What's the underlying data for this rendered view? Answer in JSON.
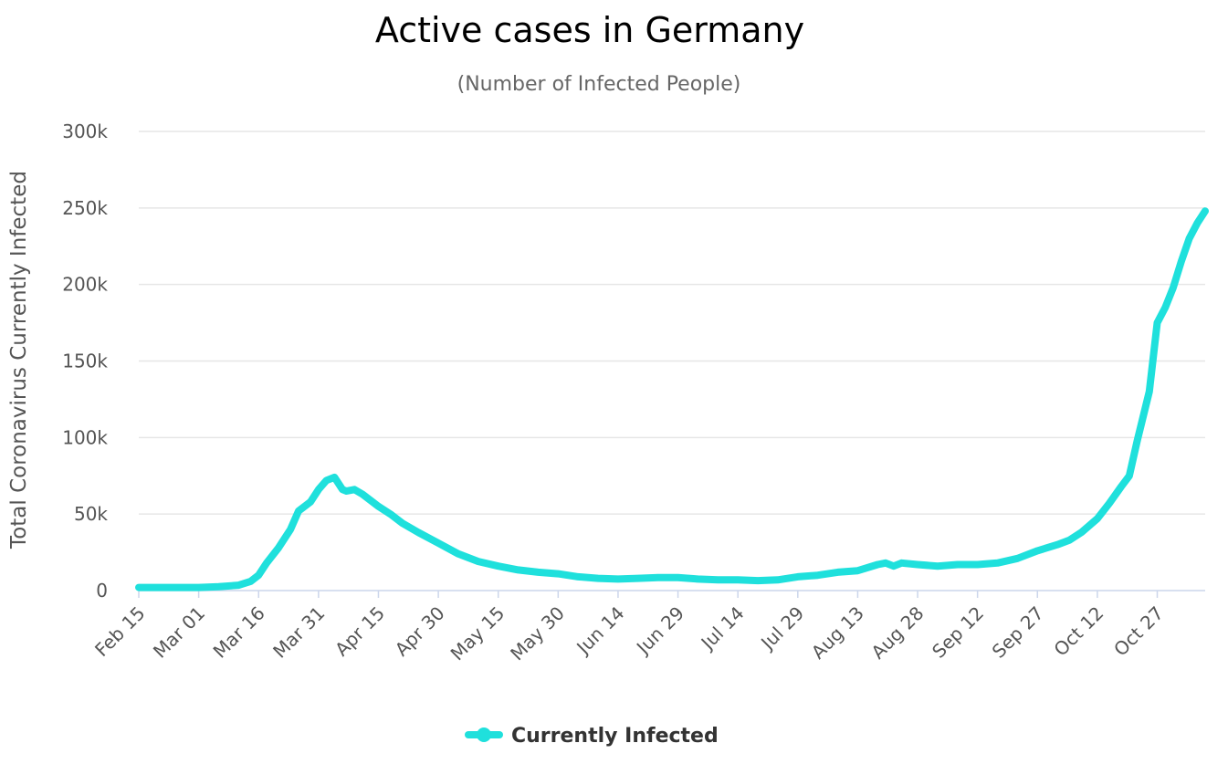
{
  "chart_data": {
    "type": "line",
    "title": "Active cases in Germany",
    "subtitle": "(Number of Infected People)",
    "ylabel": "Total Coronavirus Currently Infected",
    "xlabel": "",
    "ylim": [
      0,
      300000
    ],
    "y_ticks": [
      0,
      50000,
      100000,
      150000,
      200000,
      250000,
      300000
    ],
    "y_tick_labels": [
      "0",
      "50k",
      "100k",
      "150k",
      "200k",
      "250k",
      "300k"
    ],
    "x_tick_labels": [
      "Feb 15",
      "Mar 01",
      "Mar 16",
      "Mar 31",
      "Apr 15",
      "Apr 30",
      "May 15",
      "May 30",
      "Jun 14",
      "Jun 29",
      "Jul 14",
      "Jul 29",
      "Aug 13",
      "Aug 28",
      "Sep 12",
      "Sep 27",
      "Oct 12",
      "Oct 27"
    ],
    "grid": true,
    "legend_position": "bottom-center",
    "series": [
      {
        "name": "Currently Infected",
        "color": "#1fe0dc",
        "x": [
          "Feb 15",
          "Feb 20",
          "Feb 25",
          "Mar 01",
          "Mar 06",
          "Mar 11",
          "Mar 14",
          "Mar 16",
          "Mar 18",
          "Mar 21",
          "Mar 24",
          "Mar 26",
          "Mar 29",
          "Mar 31",
          "Apr 02",
          "Apr 04",
          "Apr 06",
          "Apr 07",
          "Apr 09",
          "Apr 11",
          "Apr 13",
          "Apr 15",
          "Apr 18",
          "Apr 21",
          "Apr 25",
          "Apr 30",
          "May 05",
          "May 10",
          "May 15",
          "May 20",
          "May 25",
          "May 30",
          "Jun 04",
          "Jun 09",
          "Jun 14",
          "Jun 19",
          "Jun 24",
          "Jun 29",
          "Jul 04",
          "Jul 09",
          "Jul 14",
          "Jul 19",
          "Jul 24",
          "Jul 29",
          "Aug 03",
          "Aug 08",
          "Aug 13",
          "Aug 18",
          "Aug 20",
          "Aug 22",
          "Aug 24",
          "Aug 28",
          "Sep 02",
          "Sep 07",
          "Sep 12",
          "Sep 17",
          "Sep 22",
          "Sep 27",
          "Oct 02",
          "Oct 05",
          "Oct 08",
          "Oct 12",
          "Oct 15",
          "Oct 18",
          "Oct 20",
          "Oct 22",
          "Oct 25",
          "Oct 27",
          "Oct 29",
          "Oct 31",
          "Nov 02",
          "Nov 04",
          "Nov 06",
          "Nov 08"
        ],
        "values": [
          2000,
          2000,
          2000,
          2000,
          2500,
          3500,
          6000,
          10000,
          18000,
          28000,
          40000,
          52000,
          58000,
          66000,
          72000,
          74000,
          66000,
          65000,
          66000,
          63000,
          59000,
          55000,
          50000,
          44000,
          38000,
          31000,
          24000,
          19000,
          16000,
          13500,
          12000,
          11000,
          9000,
          8000,
          7500,
          8000,
          8500,
          8500,
          7500,
          7000,
          7000,
          6500,
          7000,
          9000,
          10000,
          12000,
          13000,
          17000,
          18000,
          16000,
          18000,
          17000,
          16000,
          17000,
          17000,
          18000,
          21000,
          26000,
          30000,
          33000,
          38000,
          47000,
          57000,
          68000,
          75000,
          98000,
          130000,
          175000,
          185000,
          198000,
          215000,
          230000,
          240000,
          248000
        ]
      }
    ]
  }
}
